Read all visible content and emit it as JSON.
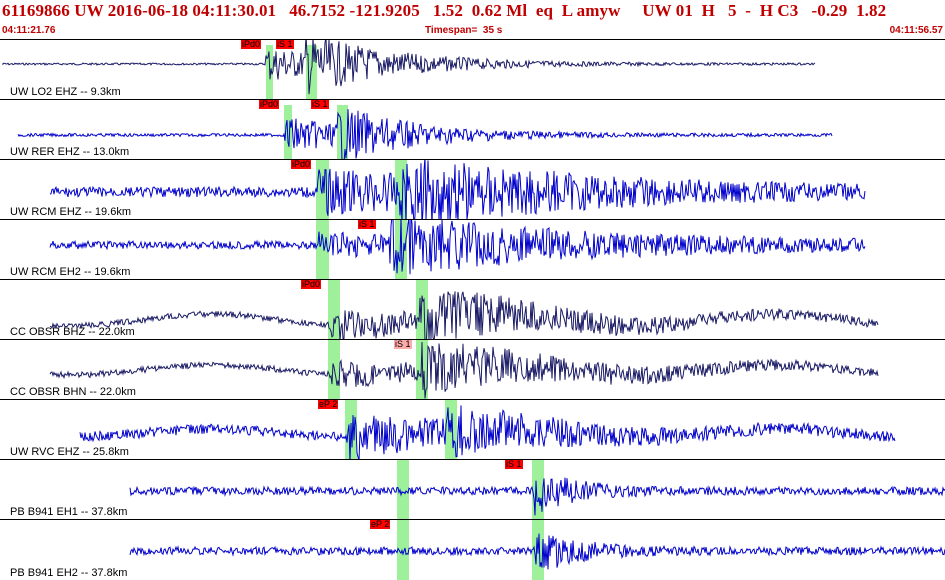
{
  "header": {
    "event_line": "61169866 UW 2016-06-18 04:11:30.01   46.7152 -121.9205   1.52  0.62 Ml  eq  L amyw     UW 01  H   5  -  H C3   -0.29  1.82",
    "start_time": "04:11:21.76",
    "end_time": "04:11:56.57",
    "timespan": "Timespan=  35 s"
  },
  "colors": {
    "header_text": "#c00000",
    "trace_blue": "#0000cc",
    "trace_dark": "#1a1a66",
    "pick_bg": "#ff0000",
    "pick_bg_light": "#ffaaaa",
    "band": "#9ef19a"
  },
  "channels": [
    {
      "label": "UW LO2 EHZ -- 9.3km",
      "trace_color": "dark",
      "picks": [
        "iPd0",
        "iS 1"
      ]
    },
    {
      "label": "UW RER EHZ -- 13.0km",
      "trace_color": "blue",
      "picks": [
        "iPd0",
        "iS 1"
      ]
    },
    {
      "label": "UW RCM EHZ -- 19.6km",
      "trace_color": "blue",
      "picks": [
        "iPd0"
      ]
    },
    {
      "label": "UW RCM EH2 -- 19.6km",
      "trace_color": "blue",
      "picks": [
        "iS 1"
      ]
    },
    {
      "label": "CC OBSR BHZ -- 22.0km",
      "trace_color": "dark",
      "picks": [
        "iPd0"
      ]
    },
    {
      "label": "CC OBSR BHN -- 22.0km",
      "trace_color": "dark",
      "picks": [
        "iS 1"
      ]
    },
    {
      "label": "UW RVC EHZ -- 25.8km",
      "trace_color": "blue",
      "picks": [
        "eP 2"
      ]
    },
    {
      "label": "PB B941 EH1 -- 37.8km",
      "trace_color": "blue",
      "picks": [
        "iS 1"
      ]
    },
    {
      "label": "PB B941 EH2 -- 37.8km",
      "trace_color": "blue",
      "picks": [
        "eP 2"
      ]
    }
  ]
}
